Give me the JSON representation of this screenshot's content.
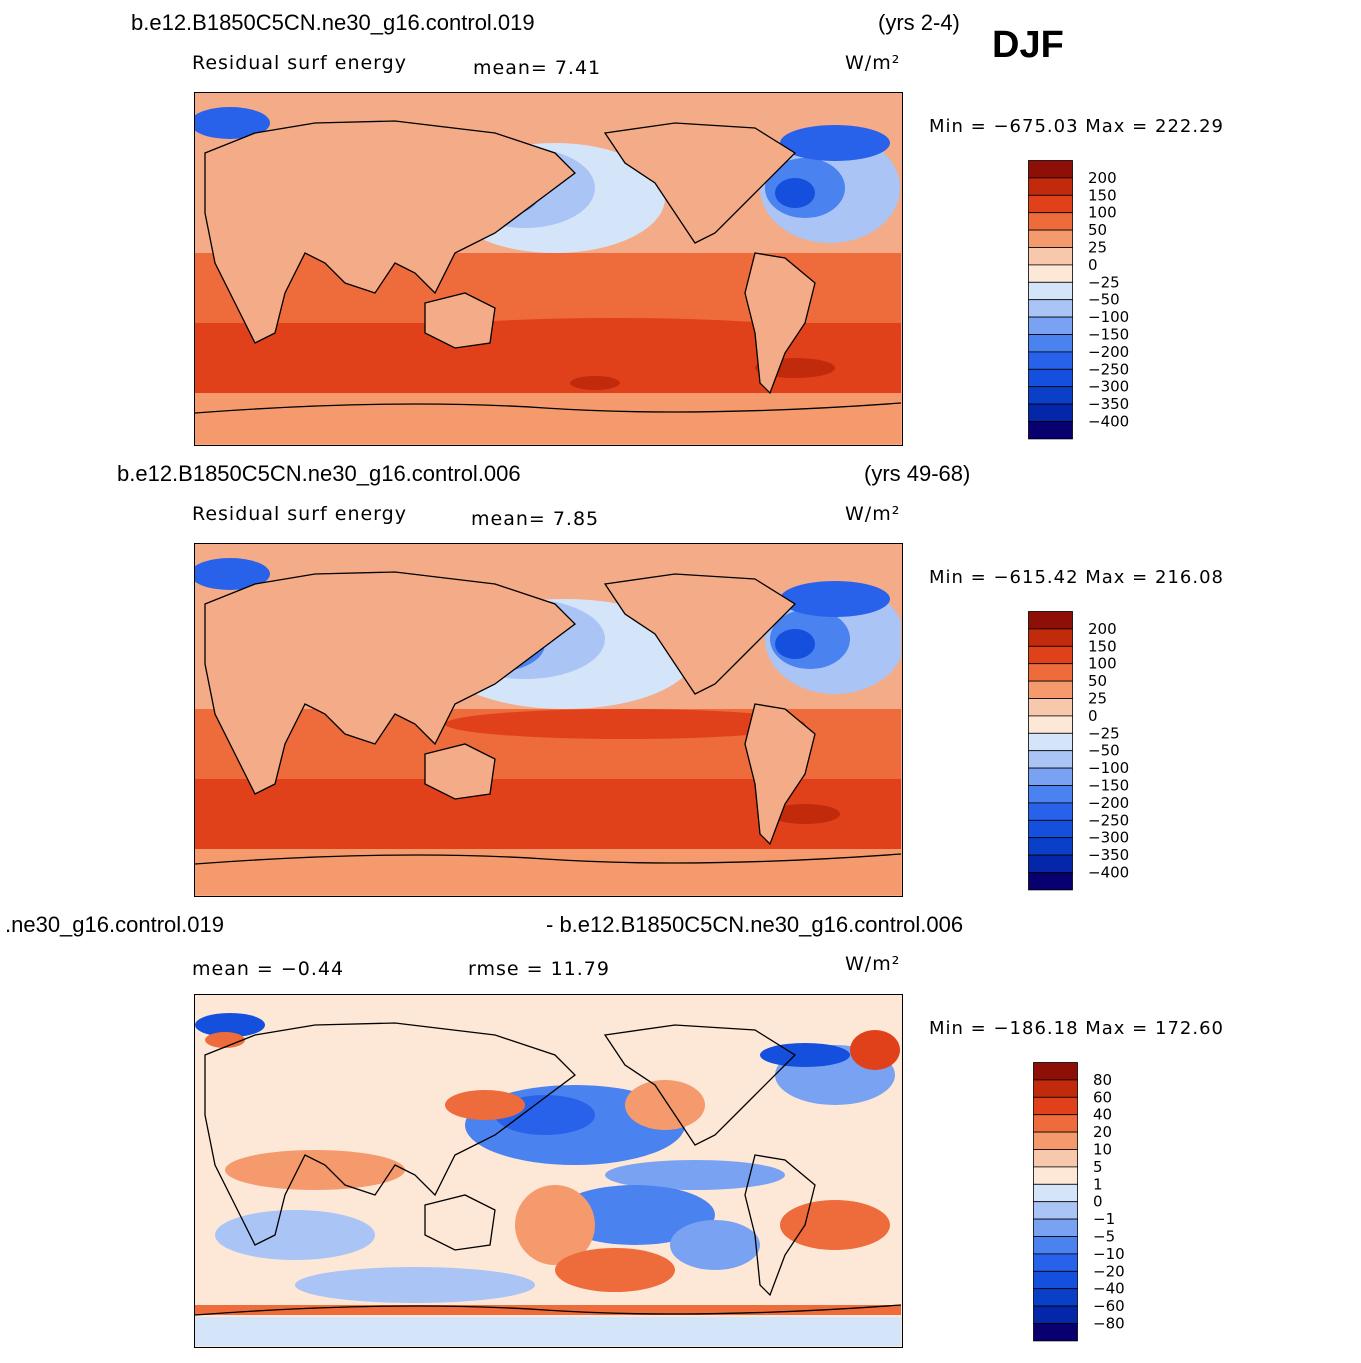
{
  "season": "DJF",
  "units": "W/m²",
  "colors": {
    "levels_16": [
      "#08006e",
      "#0426a8",
      "#0a3fc8",
      "#1450dd",
      "#2962ea",
      "#4a82f0",
      "#7aa2f3",
      "#a9c4f5",
      "#d5e5f9",
      "#fde7d6",
      "#f8c8ad",
      "#f49a6c",
      "#ee6b3b",
      "#e0411a",
      "#c22a0c",
      "#8e0f08"
    ]
  },
  "panels": [
    {
      "case": "b.e12.B1850C5CN.ne30_g16.control.019",
      "years": "(yrs 2-4)",
      "variable": "Residual  surf  energy",
      "stat1": "mean=    7.41",
      "stat2": "",
      "units": "W/m²",
      "minmax": "Min  =  −675.03  Max  =  222.29",
      "levels": [
        "200",
        "150",
        "100",
        "50",
        "25",
        "0",
        "−25",
        "−50",
        "−100",
        "−150",
        "−200",
        "−250",
        "−300",
        "−350",
        "−400"
      ]
    },
    {
      "case": "b.e12.B1850C5CN.ne30_g16.control.006",
      "years": "(yrs 49-68)",
      "variable": "Residual  surf  energy",
      "stat1": "mean=    7.85",
      "stat2": "",
      "units": "W/m²",
      "minmax": "Min  =  −615.42  Max  =  216.08",
      "levels": [
        "200",
        "150",
        "100",
        "50",
        "25",
        "0",
        "−25",
        "−50",
        "−100",
        "−150",
        "−200",
        "−250",
        "−300",
        "−350",
        "−400"
      ]
    },
    {
      "case": ".ne30_g16.control.019",
      "case_right": "- b.e12.B1850C5CN.ne30_g16.control.006",
      "variable": "",
      "stat1": "mean  =   −0.44",
      "stat2": "rmse  =   11.79",
      "units": "W/m²",
      "minmax": "Min  =  −186.18  Max  =  172.60",
      "levels": [
        "80",
        "60",
        "40",
        "20",
        "10",
        "5",
        "1",
        "0",
        "−1",
        "−5",
        "−10",
        "−20",
        "−40",
        "−60",
        "−80"
      ]
    }
  ],
  "chart_data": [
    {
      "type": "heatmap",
      "title": "b.e12.B1850C5CN.ne30_g16.control.019 (yrs 2-4) DJF",
      "variable": "Residual surf energy",
      "units": "W/m²",
      "mean": 7.41,
      "min": -675.03,
      "max": 222.29,
      "contour_levels": [
        -400,
        -350,
        -300,
        -250,
        -200,
        -150,
        -100,
        -50,
        -25,
        0,
        25,
        50,
        100,
        150,
        200
      ]
    },
    {
      "type": "heatmap",
      "title": "b.e12.B1850C5CN.ne30_g16.control.006 (yrs 49-68) DJF",
      "variable": "Residual surf energy",
      "units": "W/m²",
      "mean": 7.85,
      "min": -615.42,
      "max": 216.08,
      "contour_levels": [
        -400,
        -350,
        -300,
        -250,
        -200,
        -150,
        -100,
        -50,
        -25,
        0,
        25,
        50,
        100,
        150,
        200
      ]
    },
    {
      "type": "heatmap",
      "title": ".ne30_g16.control.019 - b.e12.B1850C5CN.ne30_g16.control.006",
      "units": "W/m²",
      "mean": -0.44,
      "rmse": 11.79,
      "min": -186.18,
      "max": 172.6,
      "contour_levels": [
        -80,
        -60,
        -40,
        -20,
        -10,
        -5,
        -1,
        0,
        1,
        5,
        10,
        20,
        40,
        60,
        80
      ]
    }
  ]
}
